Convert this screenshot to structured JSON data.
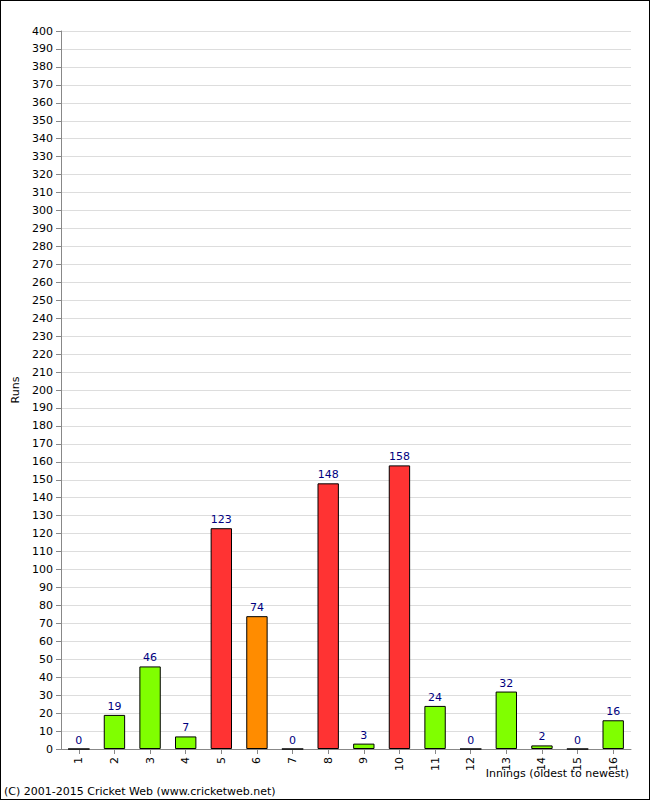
{
  "chart_data": {
    "type": "bar",
    "categories": [
      "1",
      "2",
      "3",
      "4",
      "5",
      "6",
      "7",
      "8",
      "9",
      "10",
      "11",
      "12",
      "13",
      "14",
      "15",
      "16"
    ],
    "values": [
      0,
      19,
      46,
      7,
      123,
      74,
      0,
      148,
      3,
      158,
      24,
      0,
      32,
      2,
      0,
      16
    ],
    "colors": [
      "#80ff00",
      "#80ff00",
      "#80ff00",
      "#80ff00",
      "#ff3333",
      "#ff8c00",
      "#80ff00",
      "#ff3333",
      "#80ff00",
      "#ff3333",
      "#80ff00",
      "#80ff00",
      "#80ff00",
      "#80ff00",
      "#80ff00",
      "#80ff00"
    ],
    "xlabel": "Innings (oldest to newest)",
    "ylabel": "Runs",
    "annotations": [
      "(C) 2001-2015 Cricket Web (www.cricketweb.net)"
    ],
    "ylim": [
      0,
      400
    ],
    "yticks": [
      0,
      10,
      20,
      30,
      40,
      50,
      60,
      70,
      80,
      90,
      100,
      110,
      120,
      130,
      140,
      150,
      160,
      170,
      180,
      190,
      200,
      210,
      220,
      230,
      240,
      250,
      260,
      270,
      280,
      290,
      300,
      310,
      320,
      330,
      340,
      350,
      360,
      370,
      380,
      390,
      400
    ],
    "grid": true,
    "data_labels": true
  }
}
